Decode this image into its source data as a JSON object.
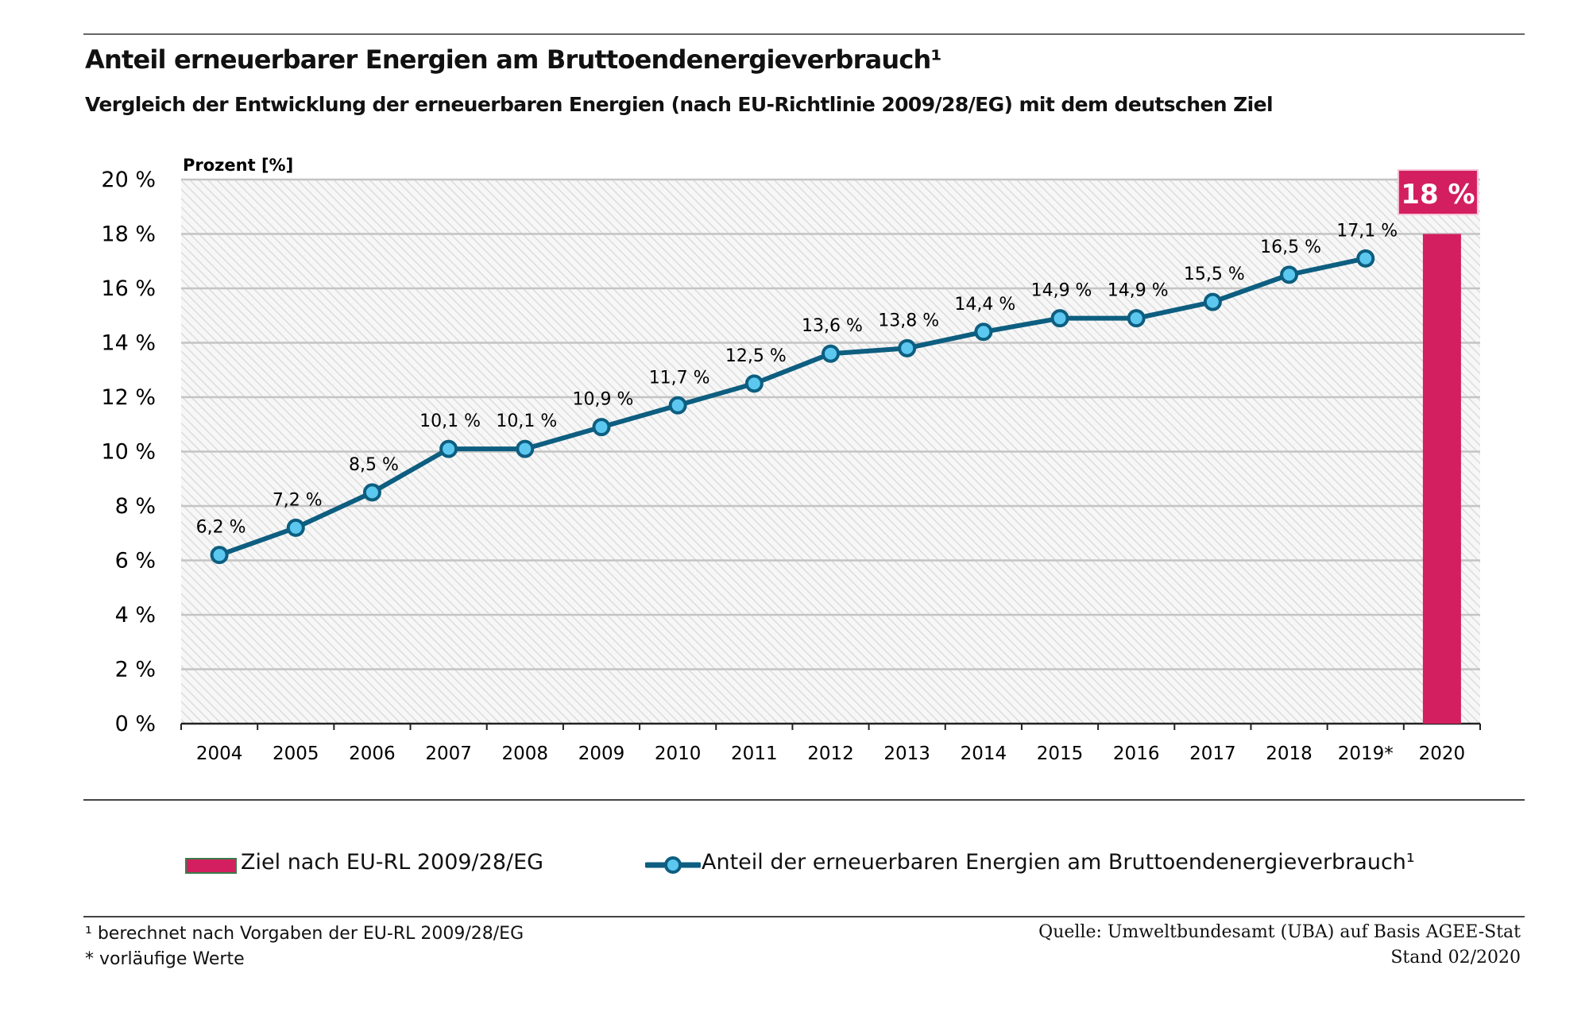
{
  "title": "Anteil erneuerbarer Energien am Bruttoendenergieverbrauch¹",
  "subtitle": "Vergleich der Entwicklung der erneuerbaren Energien (nach EU-Richtlinie 2009/28/EG) mit dem deutschen Ziel",
  "chart_data": {
    "type": "line",
    "ylabel": "Prozent [%]",
    "ylim": [
      0,
      20
    ],
    "yticks": [
      "0 %",
      "2 %",
      "4 %",
      "6 %",
      "8 %",
      "10 %",
      "12 %",
      "14 %",
      "16 %",
      "18 %",
      "20 %"
    ],
    "grid": true,
    "categories": [
      "2004",
      "2005",
      "2006",
      "2007",
      "2008",
      "2009",
      "2010",
      "2011",
      "2012",
      "2013",
      "2014",
      "2015",
      "2016",
      "2017",
      "2018",
      "2019*",
      "2020"
    ],
    "series": [
      {
        "name": "Anteil der erneuerbaren Energien am Bruttoendenergieverbrauch¹",
        "type": "line",
        "color": "#0d5e80",
        "marker_color": "#5cc8f0",
        "values": [
          6.2,
          7.2,
          8.5,
          10.1,
          10.1,
          10.9,
          11.7,
          12.5,
          13.6,
          13.8,
          14.4,
          14.9,
          14.9,
          15.5,
          16.5,
          17.1,
          null
        ],
        "labels": [
          "6,2 %",
          "7,2 %",
          "8,5 %",
          "10,1 %",
          "10,1 %",
          "10,9 %",
          "11,7 %",
          "12,5 %",
          "13,6 %",
          "13,8 %",
          "14,4 %",
          "14,9 %",
          "14,9 %",
          "15,5 %",
          "16,5 %",
          "17,1 %",
          ""
        ]
      },
      {
        "name": "Ziel nach EU-RL 2009/28/EG",
        "type": "bar",
        "color": "#d31f5f",
        "category": "2020",
        "value": 18,
        "label": "18 %"
      }
    ],
    "legend": "bottom"
  },
  "footnotes": [
    "¹ berechnet nach Vorgaben der EU-RL 2009/28/EG",
    "* vorläufige Werte"
  ],
  "source": [
    "Quelle: Umweltbundesamt (UBA) auf Basis AGEE-Stat",
    "Stand 02/2020"
  ]
}
